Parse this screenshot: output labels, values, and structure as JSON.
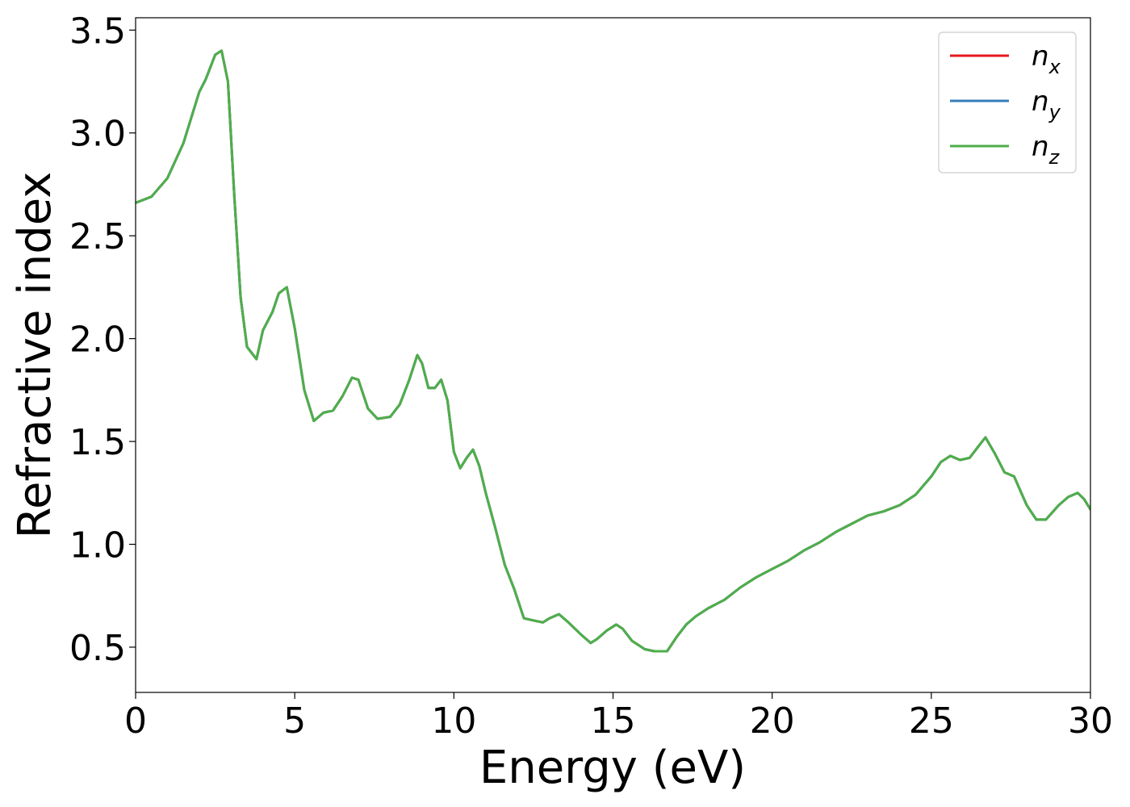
{
  "chart_data": {
    "type": "line",
    "title": "",
    "xlabel": "Energy (eV)",
    "ylabel": "Refractive index",
    "xlim": [
      0,
      30
    ],
    "ylim": [
      0.28,
      3.56
    ],
    "xticks": [
      0,
      5,
      10,
      15,
      20,
      25,
      30
    ],
    "xtick_labels": [
      "0",
      "5",
      "10",
      "15",
      "20",
      "25",
      "30"
    ],
    "yticks": [
      0.5,
      1.0,
      1.5,
      2.0,
      2.5,
      3.0,
      3.5
    ],
    "ytick_labels": [
      "0.5",
      "1.0",
      "1.5",
      "2.0",
      "2.5",
      "3.0",
      "3.5"
    ],
    "grid": false,
    "legend_position": "top-right",
    "x": [
      0,
      0.5,
      1.0,
      1.5,
      2.0,
      2.2,
      2.5,
      2.7,
      2.9,
      3.1,
      3.3,
      3.5,
      3.8,
      4.0,
      4.3,
      4.5,
      4.75,
      5.0,
      5.3,
      5.6,
      5.9,
      6.2,
      6.5,
      6.8,
      7.0,
      7.3,
      7.6,
      8.0,
      8.3,
      8.6,
      8.85,
      9.0,
      9.2,
      9.4,
      9.6,
      9.8,
      10.0,
      10.2,
      10.4,
      10.6,
      10.8,
      11.0,
      11.3,
      11.6,
      11.9,
      12.2,
      12.5,
      12.8,
      13.0,
      13.3,
      13.6,
      14.0,
      14.3,
      14.5,
      14.8,
      15.1,
      15.3,
      15.6,
      16.0,
      16.3,
      16.7,
      17.0,
      17.3,
      17.6,
      18.0,
      18.5,
      19.0,
      19.5,
      20.0,
      20.5,
      21.0,
      21.5,
      22.0,
      22.5,
      23.0,
      23.5,
      24.0,
      24.5,
      25.0,
      25.3,
      25.6,
      25.9,
      26.2,
      26.5,
      26.7,
      27.0,
      27.3,
      27.6,
      28.0,
      28.3,
      28.6,
      29.0,
      29.3,
      29.6,
      29.8,
      30.0
    ],
    "series": [
      {
        "name": "n_x",
        "color": "#e41a1c",
        "label_base": "n",
        "label_sub": "x",
        "values": [
          2.66,
          2.69,
          2.78,
          2.95,
          3.2,
          3.26,
          3.38,
          3.4,
          3.25,
          2.7,
          2.2,
          1.96,
          1.9,
          2.04,
          2.13,
          2.22,
          2.25,
          2.05,
          1.75,
          1.6,
          1.64,
          1.65,
          1.72,
          1.81,
          1.8,
          1.66,
          1.61,
          1.62,
          1.68,
          1.8,
          1.92,
          1.88,
          1.76,
          1.76,
          1.8,
          1.7,
          1.45,
          1.37,
          1.42,
          1.46,
          1.38,
          1.25,
          1.08,
          0.9,
          0.78,
          0.64,
          0.63,
          0.62,
          0.64,
          0.66,
          0.62,
          0.56,
          0.52,
          0.54,
          0.58,
          0.61,
          0.59,
          0.53,
          0.49,
          0.48,
          0.48,
          0.55,
          0.61,
          0.65,
          0.69,
          0.73,
          0.79,
          0.84,
          0.88,
          0.92,
          0.97,
          1.01,
          1.06,
          1.1,
          1.14,
          1.16,
          1.19,
          1.24,
          1.33,
          1.4,
          1.43,
          1.41,
          1.42,
          1.48,
          1.52,
          1.44,
          1.35,
          1.33,
          1.19,
          1.12,
          1.12,
          1.19,
          1.23,
          1.25,
          1.22,
          1.17
        ]
      },
      {
        "name": "n_y",
        "color": "#377eb8",
        "label_base": "n",
        "label_sub": "y",
        "values": [
          2.66,
          2.69,
          2.78,
          2.95,
          3.2,
          3.26,
          3.38,
          3.4,
          3.25,
          2.7,
          2.2,
          1.96,
          1.9,
          2.04,
          2.13,
          2.22,
          2.25,
          2.05,
          1.75,
          1.6,
          1.64,
          1.65,
          1.72,
          1.81,
          1.8,
          1.66,
          1.61,
          1.62,
          1.68,
          1.8,
          1.92,
          1.88,
          1.76,
          1.76,
          1.8,
          1.7,
          1.45,
          1.37,
          1.42,
          1.46,
          1.38,
          1.25,
          1.08,
          0.9,
          0.78,
          0.64,
          0.63,
          0.62,
          0.64,
          0.66,
          0.62,
          0.56,
          0.52,
          0.54,
          0.58,
          0.61,
          0.59,
          0.53,
          0.49,
          0.48,
          0.48,
          0.55,
          0.61,
          0.65,
          0.69,
          0.73,
          0.79,
          0.84,
          0.88,
          0.92,
          0.97,
          1.01,
          1.06,
          1.1,
          1.14,
          1.16,
          1.19,
          1.24,
          1.33,
          1.4,
          1.43,
          1.41,
          1.42,
          1.48,
          1.52,
          1.44,
          1.35,
          1.33,
          1.19,
          1.12,
          1.12,
          1.19,
          1.23,
          1.25,
          1.22,
          1.17
        ]
      },
      {
        "name": "n_z",
        "color": "#4daf4a",
        "label_base": "n",
        "label_sub": "z",
        "values": [
          2.66,
          2.69,
          2.78,
          2.95,
          3.2,
          3.26,
          3.38,
          3.4,
          3.25,
          2.7,
          2.2,
          1.96,
          1.9,
          2.04,
          2.13,
          2.22,
          2.25,
          2.05,
          1.75,
          1.6,
          1.64,
          1.65,
          1.72,
          1.81,
          1.8,
          1.66,
          1.61,
          1.62,
          1.68,
          1.8,
          1.92,
          1.88,
          1.76,
          1.76,
          1.8,
          1.7,
          1.45,
          1.37,
          1.42,
          1.46,
          1.38,
          1.25,
          1.08,
          0.9,
          0.78,
          0.64,
          0.63,
          0.62,
          0.64,
          0.66,
          0.62,
          0.56,
          0.52,
          0.54,
          0.58,
          0.61,
          0.59,
          0.53,
          0.49,
          0.48,
          0.48,
          0.55,
          0.61,
          0.65,
          0.69,
          0.73,
          0.79,
          0.84,
          0.88,
          0.92,
          0.97,
          1.01,
          1.06,
          1.1,
          1.14,
          1.16,
          1.19,
          1.24,
          1.33,
          1.4,
          1.43,
          1.41,
          1.42,
          1.48,
          1.52,
          1.44,
          1.35,
          1.33,
          1.19,
          1.12,
          1.12,
          1.19,
          1.23,
          1.25,
          1.22,
          1.17
        ]
      }
    ]
  }
}
